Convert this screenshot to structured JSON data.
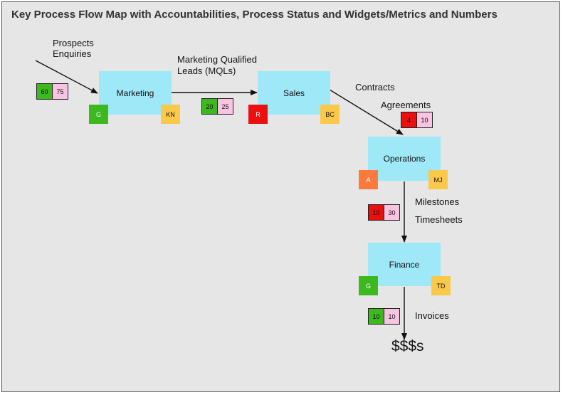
{
  "title": "Key Process Flow Map with Accountabilities, Process Status and Widgets/Metrics and Numbers",
  "colors": {
    "process_fill": "#9ee8f8",
    "green": "#3db81e",
    "red": "#ea1010",
    "amber": "#fb7a3c",
    "owner_yellow": "#fcc84a",
    "metric_pink": "#f9c3e2",
    "background": "#e6e6e6"
  },
  "processes": {
    "marketing": {
      "label": "Marketing",
      "status": "G",
      "owner": "KN"
    },
    "sales": {
      "label": "Sales",
      "status": "R",
      "owner": "BC"
    },
    "operations": {
      "label": "Operations",
      "status": "A",
      "owner": "MJ"
    },
    "finance": {
      "label": "Finance",
      "status": "G",
      "owner": "TD"
    }
  },
  "flow_labels": {
    "prospects": "Prospects",
    "enquiries": "Enquiries",
    "mql_line1": "Marketing Qualified",
    "mql_line2": "Leads (MQLs)",
    "contracts": "Contracts",
    "agreements": "Agreements",
    "milestones": "Milestones",
    "timesheets": "Timesheets",
    "invoices": "Invoices",
    "output": "$$$s"
  },
  "widgets": {
    "enquiries": {
      "actual": "60",
      "target": "75",
      "status_color": "green"
    },
    "mqls": {
      "actual": "20",
      "target": "25",
      "status_color": "green"
    },
    "agreements": {
      "actual": "4",
      "target": "10",
      "status_color": "red"
    },
    "milestones": {
      "actual": "10",
      "target": "30",
      "status_color": "red"
    },
    "invoices": {
      "actual": "10",
      "target": "10",
      "status_color": "green"
    }
  }
}
